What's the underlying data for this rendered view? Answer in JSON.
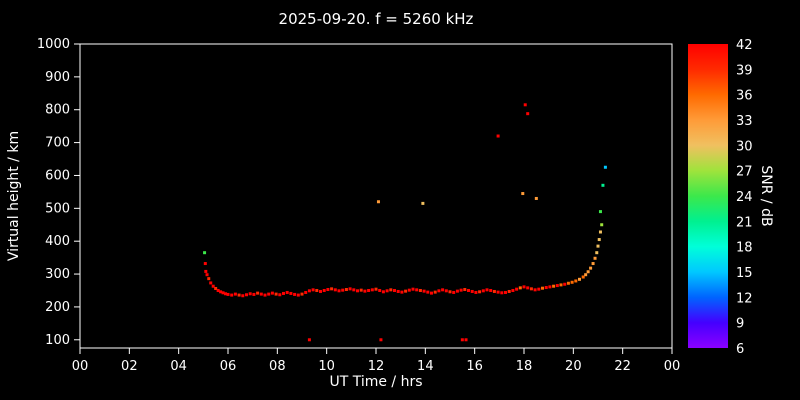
{
  "chart_data": {
    "type": "scatter",
    "title": "2025-09-20. f = 5260 kHz",
    "xlabel": "UT Time / hrs",
    "ylabel": "Virtual height / km",
    "background": "#000000",
    "axis_color": "#ffffff",
    "grid": false,
    "xlim": [
      0,
      24
    ],
    "ylim": [
      75,
      1000
    ],
    "x_ticks": [
      0,
      2,
      4,
      6,
      8,
      10,
      12,
      14,
      16,
      18,
      20,
      22,
      24
    ],
    "x_tick_labels": [
      "00",
      "02",
      "04",
      "06",
      "08",
      "10",
      "12",
      "14",
      "16",
      "18",
      "20",
      "22",
      "00"
    ],
    "y_ticks": [
      100,
      200,
      300,
      400,
      500,
      600,
      700,
      800,
      900,
      1000
    ],
    "colorbar": {
      "label": "SNR / dB",
      "min": 6,
      "max": 42,
      "tick_values": [
        6,
        9,
        12,
        15,
        18,
        21,
        24,
        27,
        30,
        33,
        36,
        39,
        42
      ],
      "stops": [
        {
          "value": 6,
          "color": "#8b00ff"
        },
        {
          "value": 9,
          "color": "#4400ff"
        },
        {
          "value": 12,
          "color": "#0064ff"
        },
        {
          "value": 15,
          "color": "#00c8ff"
        },
        {
          "value": 18,
          "color": "#00ffd9"
        },
        {
          "value": 21,
          "color": "#00f090"
        },
        {
          "value": 24,
          "color": "#3ce84b"
        },
        {
          "value": 27,
          "color": "#9fe33c"
        },
        {
          "value": 30,
          "color": "#f0c060"
        },
        {
          "value": 33,
          "color": "#ff9b38"
        },
        {
          "value": 36,
          "color": "#ff6a00"
        },
        {
          "value": 39,
          "color": "#ff2a00"
        },
        {
          "value": 42,
          "color": "#ff0000"
        }
      ]
    },
    "points": [
      [
        5.05,
        365,
        24
      ],
      [
        5.08,
        332,
        42
      ],
      [
        5.1,
        308,
        42
      ],
      [
        5.15,
        298,
        42
      ],
      [
        5.22,
        286,
        39
      ],
      [
        5.3,
        273,
        42
      ],
      [
        5.4,
        263,
        42
      ],
      [
        5.5,
        256,
        39
      ],
      [
        5.6,
        250,
        42
      ],
      [
        5.7,
        246,
        42
      ],
      [
        5.8,
        243,
        42
      ],
      [
        5.9,
        240,
        42
      ],
      [
        6.0,
        238,
        42
      ],
      [
        6.15,
        236,
        42
      ],
      [
        6.3,
        239,
        42
      ],
      [
        6.45,
        236,
        39
      ],
      [
        6.6,
        234,
        42
      ],
      [
        6.75,
        237,
        42
      ],
      [
        6.9,
        240,
        42
      ],
      [
        7.05,
        238,
        42
      ],
      [
        7.2,
        242,
        39
      ],
      [
        7.35,
        239,
        42
      ],
      [
        7.5,
        236,
        42
      ],
      [
        7.65,
        239,
        42
      ],
      [
        7.8,
        242,
        42
      ],
      [
        7.95,
        239,
        39
      ],
      [
        8.1,
        237,
        42
      ],
      [
        8.25,
        241,
        42
      ],
      [
        8.4,
        244,
        42
      ],
      [
        8.55,
        241,
        42
      ],
      [
        8.7,
        238,
        42
      ],
      [
        8.85,
        236,
        42
      ],
      [
        9.0,
        239,
        39
      ],
      [
        9.15,
        244,
        42
      ],
      [
        9.3,
        249,
        42
      ],
      [
        9.45,
        252,
        42
      ],
      [
        9.6,
        250,
        39
      ],
      [
        9.75,
        247,
        42
      ],
      [
        9.9,
        250,
        42
      ],
      [
        10.05,
        253,
        42
      ],
      [
        10.2,
        255,
        39
      ],
      [
        10.35,
        252,
        42
      ],
      [
        10.5,
        249,
        42
      ],
      [
        10.65,
        251,
        42
      ],
      [
        10.8,
        253,
        39
      ],
      [
        10.95,
        255,
        42
      ],
      [
        11.1,
        252,
        42
      ],
      [
        11.25,
        249,
        42
      ],
      [
        11.4,
        251,
        39
      ],
      [
        11.55,
        248,
        42
      ],
      [
        11.7,
        250,
        42
      ],
      [
        11.85,
        252,
        42
      ],
      [
        12.0,
        254,
        39
      ],
      [
        12.15,
        250,
        42
      ],
      [
        12.3,
        246,
        42
      ],
      [
        12.45,
        249,
        42
      ],
      [
        12.6,
        252,
        39
      ],
      [
        12.75,
        250,
        42
      ],
      [
        12.9,
        247,
        42
      ],
      [
        13.05,
        245,
        42
      ],
      [
        13.2,
        248,
        39
      ],
      [
        13.35,
        251,
        42
      ],
      [
        13.5,
        254,
        42
      ],
      [
        13.65,
        252,
        42
      ],
      [
        13.8,
        250,
        39
      ],
      [
        13.95,
        248,
        42
      ],
      [
        14.1,
        245,
        42
      ],
      [
        14.25,
        242,
        42
      ],
      [
        14.4,
        245,
        39
      ],
      [
        14.55,
        249,
        42
      ],
      [
        14.7,
        252,
        42
      ],
      [
        14.85,
        249,
        42
      ],
      [
        15.0,
        246,
        39
      ],
      [
        15.15,
        244,
        42
      ],
      [
        15.3,
        248,
        42
      ],
      [
        15.45,
        251,
        42
      ],
      [
        15.6,
        253,
        39
      ],
      [
        15.75,
        250,
        42
      ],
      [
        15.9,
        247,
        42
      ],
      [
        16.05,
        244,
        42
      ],
      [
        16.2,
        246,
        39
      ],
      [
        16.35,
        249,
        42
      ],
      [
        16.5,
        252,
        42
      ],
      [
        16.65,
        250,
        42
      ],
      [
        16.8,
        247,
        39
      ],
      [
        16.95,
        245,
        42
      ],
      [
        17.1,
        243,
        42
      ],
      [
        17.25,
        244,
        42
      ],
      [
        17.4,
        247,
        39
      ],
      [
        17.55,
        250,
        42
      ],
      [
        17.7,
        254,
        42
      ],
      [
        17.85,
        258,
        36
      ],
      [
        18.0,
        261,
        42
      ],
      [
        18.15,
        258,
        42
      ],
      [
        18.3,
        255,
        39
      ],
      [
        18.45,
        252,
        42
      ],
      [
        18.6,
        254,
        42
      ],
      [
        18.75,
        257,
        36
      ],
      [
        18.9,
        259,
        42
      ],
      [
        19.05,
        261,
        42
      ],
      [
        19.2,
        263,
        36
      ],
      [
        19.35,
        265,
        42
      ],
      [
        19.5,
        267,
        36
      ],
      [
        19.65,
        269,
        42
      ],
      [
        19.8,
        272,
        36
      ],
      [
        19.95,
        275,
        36
      ],
      [
        20.1,
        279,
        36
      ],
      [
        20.25,
        284,
        33
      ],
      [
        20.4,
        291,
        36
      ],
      [
        20.5,
        298,
        33
      ],
      [
        20.6,
        307,
        33
      ],
      [
        20.7,
        318,
        33
      ],
      [
        20.8,
        332,
        33
      ],
      [
        20.88,
        348,
        33
      ],
      [
        20.95,
        365,
        30
      ],
      [
        21.0,
        385,
        30
      ],
      [
        21.05,
        405,
        30
      ],
      [
        21.1,
        428,
        30
      ],
      [
        21.15,
        450,
        27
      ],
      [
        21.1,
        490,
        24
      ],
      [
        21.2,
        570,
        21
      ],
      [
        21.3,
        625,
        15
      ],
      [
        12.1,
        520,
        33
      ],
      [
        13.9,
        515,
        30
      ],
      [
        16.95,
        720,
        42
      ],
      [
        17.95,
        545,
        33
      ],
      [
        18.05,
        815,
        42
      ],
      [
        18.15,
        788,
        42
      ],
      [
        18.5,
        530,
        33
      ],
      [
        9.3,
        100,
        42
      ],
      [
        12.2,
        100,
        42
      ],
      [
        15.5,
        100,
        42
      ],
      [
        15.65,
        100,
        42
      ]
    ]
  }
}
